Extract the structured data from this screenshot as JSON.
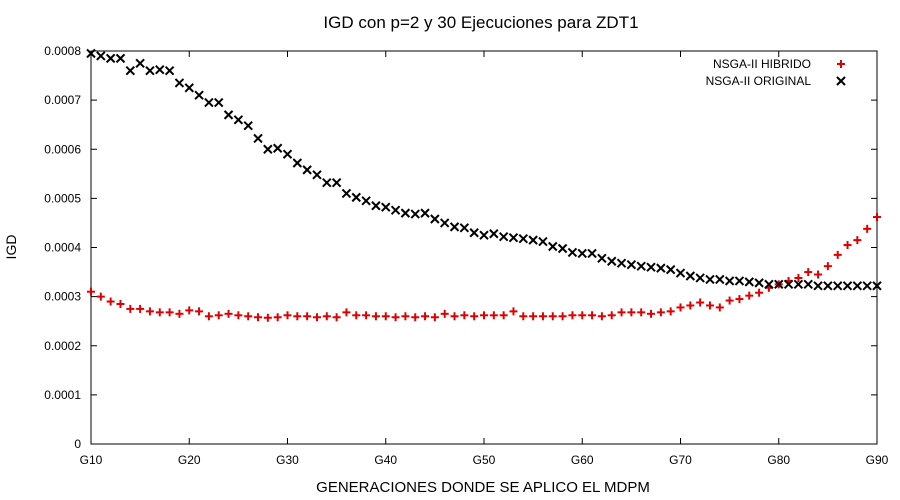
{
  "chart_data": {
    "type": "scatter",
    "title": "IGD con p=2 y 30 Ejecuciones para ZDT1",
    "xlabel": "GENERACIONES DONDE SE APLICO EL MDPM",
    "ylabel": "IGD",
    "xlim": [
      10,
      90
    ],
    "ylim": [
      0,
      0.0008
    ],
    "x_ticks": [
      {
        "value": 10,
        "label": "G10"
      },
      {
        "value": 20,
        "label": "G20"
      },
      {
        "value": 30,
        "label": "G30"
      },
      {
        "value": 40,
        "label": "G40"
      },
      {
        "value": 50,
        "label": "G50"
      },
      {
        "value": 60,
        "label": "G60"
      },
      {
        "value": 70,
        "label": "G70"
      },
      {
        "value": 80,
        "label": "G80"
      },
      {
        "value": 90,
        "label": "G90"
      }
    ],
    "y_ticks": [
      {
        "value": 0,
        "label": "0"
      },
      {
        "value": 0.0001,
        "label": "0.0001"
      },
      {
        "value": 0.0002,
        "label": "0.0002"
      },
      {
        "value": 0.0003,
        "label": "0.0003"
      },
      {
        "value": 0.0004,
        "label": "0.0004"
      },
      {
        "value": 0.0005,
        "label": "0.0005"
      },
      {
        "value": 0.0006,
        "label": "0.0006"
      },
      {
        "value": 0.0007,
        "label": "0.0007"
      },
      {
        "value": 0.0008,
        "label": "0.0008"
      }
    ],
    "legend_position": "top-right",
    "grid": false,
    "x": [
      10,
      11,
      12,
      13,
      14,
      15,
      16,
      17,
      18,
      19,
      20,
      21,
      22,
      23,
      24,
      25,
      26,
      27,
      28,
      29,
      30,
      31,
      32,
      33,
      34,
      35,
      36,
      37,
      38,
      39,
      40,
      41,
      42,
      43,
      44,
      45,
      46,
      47,
      48,
      49,
      50,
      51,
      52,
      53,
      54,
      55,
      56,
      57,
      58,
      59,
      60,
      61,
      62,
      63,
      64,
      65,
      66,
      67,
      68,
      69,
      70,
      71,
      72,
      73,
      74,
      75,
      76,
      77,
      78,
      79,
      80,
      81,
      82,
      83,
      84,
      85,
      86,
      87,
      88,
      89,
      90
    ],
    "series": [
      {
        "name": "NSGA-II HIBRIDO",
        "marker": "plus",
        "color": "#e00000",
        "values": [
          0.00031,
          0.0003,
          0.00029,
          0.000285,
          0.000275,
          0.000275,
          0.00027,
          0.000268,
          0.000268,
          0.000265,
          0.000272,
          0.00027,
          0.00026,
          0.000262,
          0.000265,
          0.000262,
          0.00026,
          0.000258,
          0.000257,
          0.000258,
          0.000262,
          0.00026,
          0.00026,
          0.000258,
          0.00026,
          0.000258,
          0.000268,
          0.000262,
          0.000262,
          0.00026,
          0.00026,
          0.000258,
          0.00026,
          0.000258,
          0.00026,
          0.000258,
          0.000265,
          0.00026,
          0.000262,
          0.00026,
          0.000262,
          0.000262,
          0.000262,
          0.00027,
          0.00026,
          0.00026,
          0.00026,
          0.00026,
          0.00026,
          0.000262,
          0.000262,
          0.000262,
          0.00026,
          0.000262,
          0.000268,
          0.000268,
          0.000268,
          0.000265,
          0.000268,
          0.00027,
          0.000278,
          0.000282,
          0.000288,
          0.000282,
          0.000278,
          0.000292,
          0.000295,
          0.000302,
          0.000308,
          0.000318,
          0.000325,
          0.000332,
          0.000338,
          0.00035,
          0.000345,
          0.000362,
          0.000385,
          0.000405,
          0.000415,
          0.000438,
          0.000462
        ]
      },
      {
        "name": "NSGA-II ORIGINAL",
        "marker": "cross",
        "color": "#000000",
        "values": [
          0.000795,
          0.00079,
          0.000785,
          0.000785,
          0.00076,
          0.000775,
          0.00076,
          0.000762,
          0.00076,
          0.000735,
          0.000725,
          0.00071,
          0.000695,
          0.000695,
          0.00067,
          0.00066,
          0.000648,
          0.000622,
          0.0006,
          0.000602,
          0.00059,
          0.000572,
          0.000558,
          0.000548,
          0.000532,
          0.000532,
          0.00051,
          0.000502,
          0.000495,
          0.000485,
          0.000482,
          0.000476,
          0.00047,
          0.000468,
          0.00047,
          0.000458,
          0.00045,
          0.000442,
          0.00044,
          0.00043,
          0.000425,
          0.000428,
          0.000422,
          0.00042,
          0.000418,
          0.000415,
          0.000412,
          0.000402,
          0.000398,
          0.00039,
          0.000388,
          0.000388,
          0.000378,
          0.000372,
          0.000368,
          0.000365,
          0.000362,
          0.00036,
          0.000358,
          0.000355,
          0.000348,
          0.000342,
          0.000338,
          0.000335,
          0.000335,
          0.000332,
          0.000332,
          0.00033,
          0.000328,
          0.000325,
          0.000325,
          0.000325,
          0.000325,
          0.000325,
          0.000322,
          0.000322,
          0.000322,
          0.000322,
          0.000322,
          0.000322,
          0.000322
        ]
      }
    ]
  }
}
